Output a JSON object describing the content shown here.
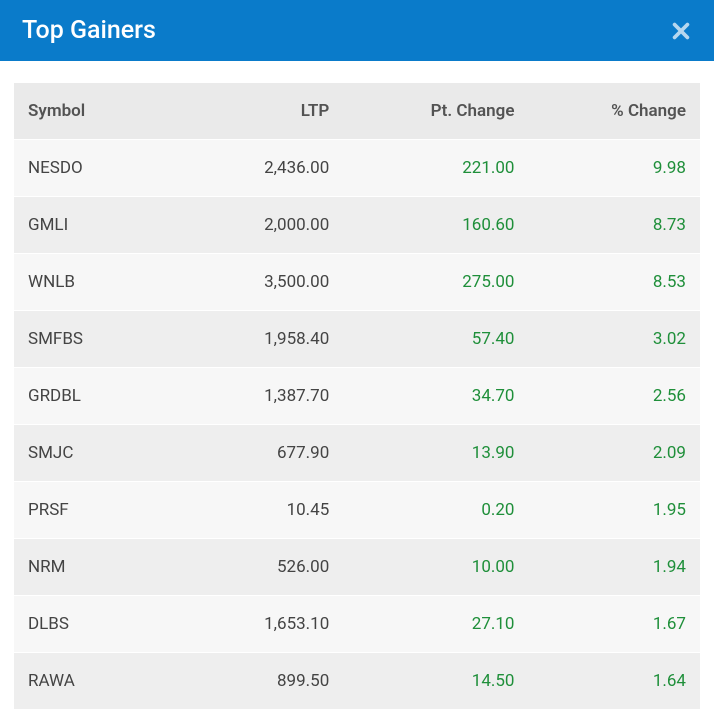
{
  "header": {
    "title": "Top Gainers",
    "close_label": "Close"
  },
  "table": {
    "columns": [
      "Symbol",
      "LTP",
      "Pt. Change",
      "% Change"
    ],
    "column_align": [
      "left",
      "right",
      "right",
      "right"
    ],
    "colors": {
      "header_bg": "#eaeaea",
      "header_text": "#535353",
      "row_odd_bg": "#f7f7f7",
      "row_even_bg": "#eeeeee",
      "text": "#444444",
      "positive": "#1f8f3a",
      "page_header_bg": "#0a7bca",
      "page_header_text": "#ffffff"
    },
    "rows": [
      {
        "symbol": "NESDO",
        "ltp": "2,436.00",
        "pt_change": "221.00",
        "pct_change": "9.98"
      },
      {
        "symbol": "GMLI",
        "ltp": "2,000.00",
        "pt_change": "160.60",
        "pct_change": "8.73"
      },
      {
        "symbol": "WNLB",
        "ltp": "3,500.00",
        "pt_change": "275.00",
        "pct_change": "8.53"
      },
      {
        "symbol": "SMFBS",
        "ltp": "1,958.40",
        "pt_change": "57.40",
        "pct_change": "3.02"
      },
      {
        "symbol": "GRDBL",
        "ltp": "1,387.70",
        "pt_change": "34.70",
        "pct_change": "2.56"
      },
      {
        "symbol": "SMJC",
        "ltp": "677.90",
        "pt_change": "13.90",
        "pct_change": "2.09"
      },
      {
        "symbol": "PRSF",
        "ltp": "10.45",
        "pt_change": "0.20",
        "pct_change": "1.95"
      },
      {
        "symbol": "NRM",
        "ltp": "526.00",
        "pt_change": "10.00",
        "pct_change": "1.94"
      },
      {
        "symbol": "DLBS",
        "ltp": "1,653.10",
        "pt_change": "27.10",
        "pct_change": "1.67"
      },
      {
        "symbol": "RAWA",
        "ltp": "899.50",
        "pt_change": "14.50",
        "pct_change": "1.64"
      }
    ]
  }
}
